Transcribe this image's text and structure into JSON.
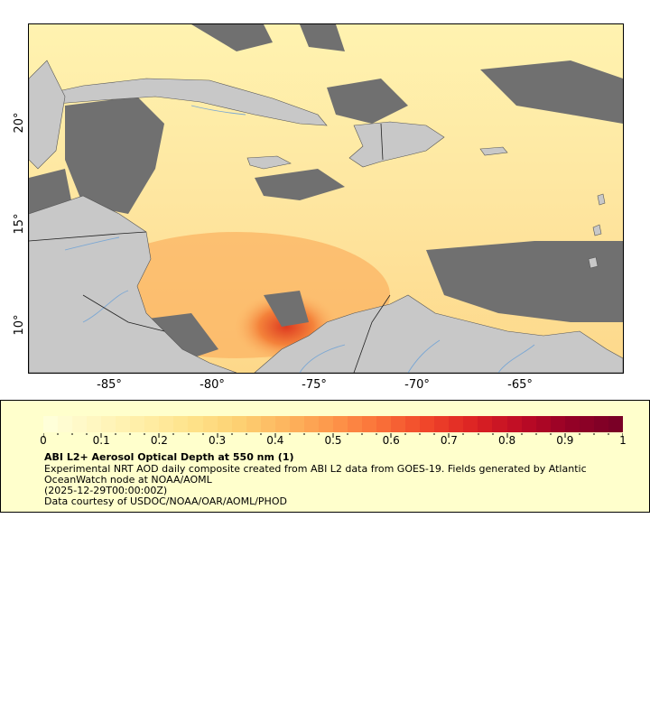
{
  "map": {
    "x_ticks": [
      "-85°",
      "-80°",
      "-75°",
      "-70°",
      "-65°"
    ],
    "y_ticks": [
      "20°",
      "15°",
      "10°"
    ],
    "colors": {
      "ocean_low": "#fff6bf",
      "land": "#c8c8c8",
      "no_data": "#707070",
      "rivers": "#7aa7d4",
      "borders": "#555555"
    }
  },
  "legend": {
    "colorbar_labels": [
      "0",
      "0.1",
      "0.2",
      "0.3",
      "0.4",
      "0.5",
      "0.6",
      "0.7",
      "0.8",
      "0.9",
      "1"
    ],
    "colorbar_colors": [
      "#ffffd9",
      "#fff6bf",
      "#ffeea5",
      "#fee28a",
      "#fdd072",
      "#fdb55e",
      "#fd964a",
      "#fa7038",
      "#f0462a",
      "#dc2323",
      "#bd0b25",
      "#950126",
      "#7a0026"
    ],
    "title": "ABI L2+ Aerosol Optical Depth at 550 nm (1)",
    "description": "Experimental NRT AOD daily composite created from ABI L2 data from GOES-19. Fields generated by Atlantic OceanWatch node at NOAA/AOML",
    "date": "(2025-12-29T00:00:00Z)",
    "credit": "Data courtesy of USDOC/NOAA/OAR/AOML/PHOD"
  }
}
